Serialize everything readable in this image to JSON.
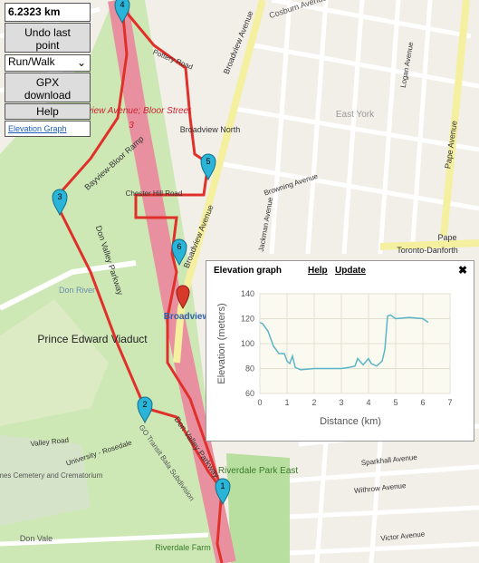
{
  "controls": {
    "distance": "6.2323 km",
    "undo": "Undo last point",
    "mode": "Run/Walk",
    "gpx": "GPX download",
    "help": "Help",
    "elevation_link": "Elevation Graph"
  },
  "map": {
    "labels": [
      "Cosburn Avenue",
      "Pottery Road",
      "Broadview Avenue",
      "Broadview Avenue",
      "Broadview North",
      "East York",
      "Browning Avenue",
      "Pape Avenue",
      "Pape",
      "Toronto-Danforth",
      "Bayview Avenue; Bloor Street",
      "3",
      "Bayview-Bloor Ramp",
      "Don Valley Parkway",
      "Don Valley Parkway",
      "Don River",
      "Prince Edward Viaduct",
      "Riverdale Park East",
      "St. James Cemetery and Crematorium",
      "Don Vale",
      "Sparkhall Avenue",
      "Withrow Avenue",
      "Victor Avenue",
      "Riverdale Farm",
      "Valley Road",
      "University - Rosedale",
      "GO Transit Bala Subdivision",
      "Logan Avenue",
      "Jackman Avenue",
      "Chester Hill Road",
      "Broadview"
    ],
    "markers": [
      "1",
      "2",
      "3",
      "4",
      "5",
      "6"
    ]
  },
  "popup": {
    "title": "Elevation graph",
    "help": "Help",
    "update": "Update",
    "close": "✖"
  },
  "chart_data": {
    "type": "line",
    "x_label": "Distance (km)",
    "y_label": "Elevation (meters)",
    "x": [
      0,
      0.1,
      0.3,
      0.5,
      0.7,
      0.9,
      1.0,
      1.1,
      1.2,
      1.3,
      1.5,
      2.0,
      2.5,
      3.0,
      3.3,
      3.5,
      3.6,
      3.8,
      4.0,
      4.1,
      4.3,
      4.5,
      4.6,
      4.7,
      4.8,
      5.0,
      5.5,
      6.0,
      6.2
    ],
    "series": [
      {
        "color": "#5ab4c8",
        "values": [
          117,
          116,
          110,
          98,
          92,
          92,
          86,
          84,
          90,
          81,
          79,
          80,
          80,
          80,
          81,
          82,
          88,
          83,
          88,
          84,
          82,
          86,
          95,
          122,
          123,
          120,
          121,
          120,
          117
        ]
      }
    ],
    "xlim": [
      0,
      7
    ],
    "ylim": [
      60,
      140
    ],
    "xticks": [
      0,
      1,
      2,
      3,
      4,
      5,
      6,
      7
    ],
    "yticks": [
      60,
      80,
      100,
      120,
      140
    ],
    "grid": true
  }
}
